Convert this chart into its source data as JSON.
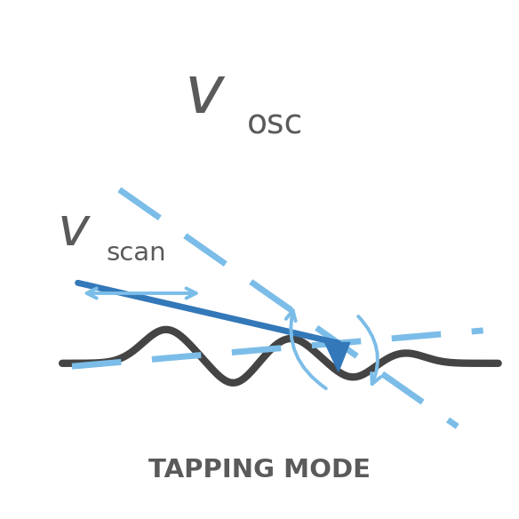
{
  "bg_color": "#ffffff",
  "surface_color": "#444444",
  "cantilever_color": "#3378b8",
  "cantilever_dashed_color": "#7bbde8",
  "arrow_color": "#7bbde8",
  "tip_color": "#3378b8",
  "text_color": "#5a5a5a",
  "title_text": "TAPPING MODE",
  "fig_w": 5.84,
  "fig_h": 5.84,
  "dpi": 100,
  "surface_lw": 6,
  "cant_lw": 5,
  "dash_lw": 5
}
